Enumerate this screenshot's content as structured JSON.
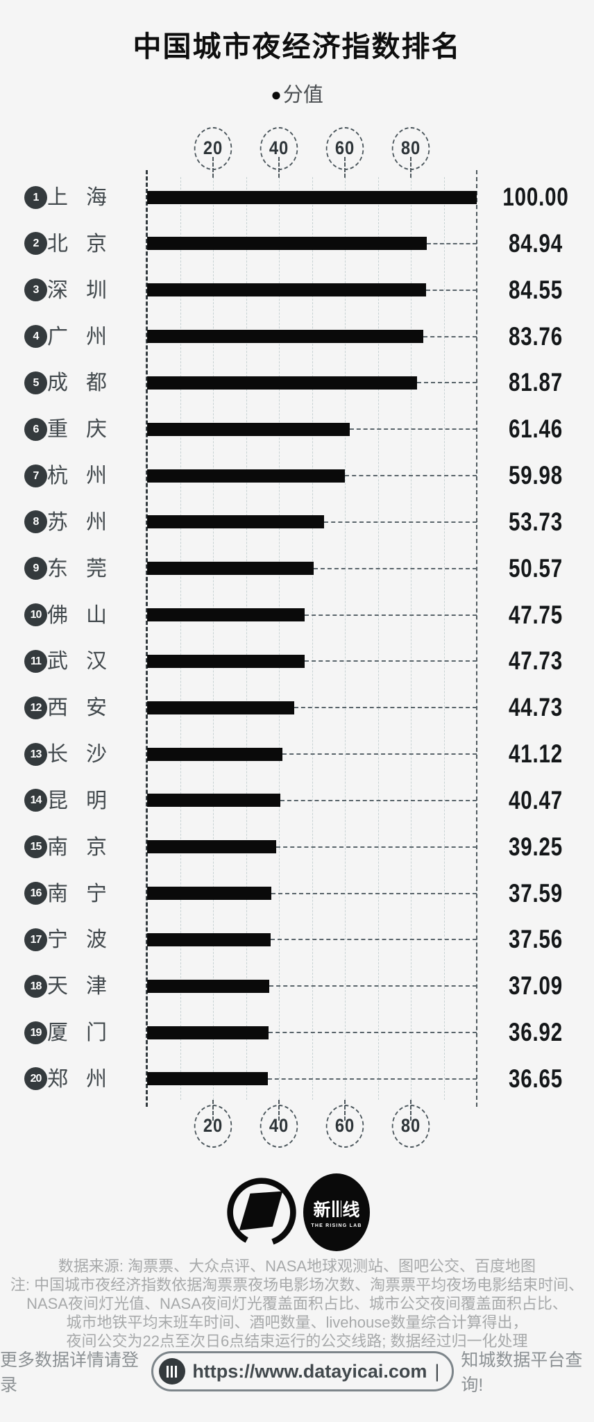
{
  "title": "中国城市夜经济指数排名",
  "legend": {
    "marker": "●",
    "label": "分值"
  },
  "chart_data": {
    "type": "bar",
    "orientation": "horizontal",
    "title": "中国城市夜经济指数排名",
    "series_name": "分值",
    "ranks": [
      1,
      2,
      3,
      4,
      5,
      6,
      7,
      8,
      9,
      10,
      11,
      12,
      13,
      14,
      15,
      16,
      17,
      18,
      19,
      20
    ],
    "categories": [
      "上海",
      "北京",
      "深圳",
      "广州",
      "成都",
      "重庆",
      "杭州",
      "苏州",
      "东莞",
      "佛山",
      "武汉",
      "西安",
      "长沙",
      "昆明",
      "南京",
      "南宁",
      "宁波",
      "天津",
      "厦门",
      "郑州"
    ],
    "values": [
      100.0,
      84.94,
      84.55,
      83.76,
      81.87,
      61.46,
      59.98,
      53.73,
      50.57,
      47.75,
      47.73,
      44.73,
      41.12,
      40.47,
      39.25,
      37.59,
      37.56,
      37.09,
      36.92,
      36.65
    ],
    "value_labels": [
      "100.00",
      "84.94",
      "84.55",
      "83.76",
      "81.87",
      "61.46",
      "59.98",
      "53.73",
      "50.57",
      "47.75",
      "47.73",
      "44.73",
      "41.12",
      "40.47",
      "39.25",
      "37.59",
      "37.56",
      "37.09",
      "36.92",
      "36.65"
    ],
    "xlim": [
      0,
      100
    ],
    "ticks": [
      20,
      40,
      60,
      80
    ],
    "grid": "dashed vertical lines every 10 units; axis ticks shown twice (top and bottom) inside dashed circles"
  },
  "logos": {
    "rising_lab_cn_left": "新",
    "rising_lab_cn_right": "线",
    "rising_lab_en": "THE RISING LAB"
  },
  "footer": {
    "source": "数据来源: 淘票票、大众点评、NASA地球观测站、图吧公交、百度地图",
    "note_lines": [
      "注: 中国城市夜经济指数依据淘票票夜场电影场次数、淘票票平均夜场电影结束时间、",
      "NASA夜间灯光值、NASA夜间灯光覆盖面积占比、城市公交夜间覆盖面积占比、",
      "城市地铁平均末班车时间、酒吧数量、livehouse数量综合计算得出，",
      "夜间公交为22点至次日6点结束运行的公交线路; 数据经过归一化处理"
    ],
    "cta_left": "更多数据详情请登录",
    "url": "https://www.datayicai.com",
    "cursor": "|",
    "cta_right": "知城数据平台查询!"
  },
  "colors": {
    "background": "#f5f5f5",
    "bar": "#0a0a0a",
    "badge": "#343a3d",
    "city_text": "#42494d",
    "value_text": "#141719",
    "grid_light": "#c7d2d3",
    "axis_dark": "#333b3f",
    "footnote_gray": "#a7a9aa",
    "cta_gray": "#8c9194"
  }
}
